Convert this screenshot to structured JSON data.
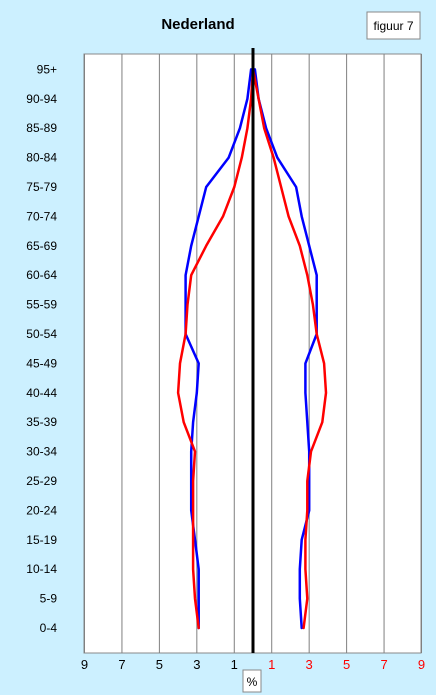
{
  "chart_data": {
    "type": "line",
    "title": "Nederland",
    "figure_label": "figuur 7",
    "xlabel": "%",
    "ylabel": "",
    "categories": [
      "0-4",
      "5-9",
      "10-14",
      "15-19",
      "20-24",
      "25-29",
      "30-34",
      "35-39",
      "40-44",
      "45-49",
      "50-54",
      "55-59",
      "60-64",
      "65-69",
      "70-74",
      "75-79",
      "80-84",
      "85-89",
      "90-94",
      "95+"
    ],
    "x_ticks_left": [
      "9",
      "7",
      "5",
      "3",
      "1"
    ],
    "x_ticks_right": [
      "1",
      "3",
      "5",
      "7",
      "9"
    ],
    "xlim": [
      -9,
      9
    ],
    "grid": true,
    "series": [
      {
        "color": "#0000ff",
        "left": [
          -2.9,
          -2.9,
          -2.9,
          -3.1,
          -3.3,
          -3.3,
          -3.3,
          -3.2,
          -3.0,
          -2.9,
          -3.6,
          -3.6,
          -3.6,
          -3.3,
          -2.9,
          -2.5,
          -1.3,
          -0.7,
          -0.3,
          -0.1
        ],
        "right": [
          2.6,
          2.5,
          2.5,
          2.6,
          3.0,
          3.0,
          3.0,
          2.9,
          2.8,
          2.8,
          3.4,
          3.4,
          3.4,
          3.0,
          2.6,
          2.3,
          1.3,
          0.7,
          0.3,
          0.1
        ]
      },
      {
        "color": "#ff0000",
        "left": [
          -2.9,
          -3.1,
          -3.2,
          -3.2,
          -3.2,
          -3.2,
          -3.1,
          -3.7,
          -4.0,
          -3.9,
          -3.6,
          -3.5,
          -3.3,
          -2.5,
          -1.6,
          -1.0,
          -0.6,
          -0.3,
          -0.1,
          0.0
        ],
        "right": [
          2.7,
          2.9,
          2.8,
          2.8,
          2.9,
          2.9,
          3.1,
          3.7,
          3.9,
          3.8,
          3.4,
          3.2,
          2.9,
          2.5,
          1.9,
          1.5,
          1.1,
          0.6,
          0.3,
          0.0
        ]
      }
    ],
    "colors": {
      "background": "#ccf0ff",
      "left_tick_color": "#000000",
      "right_tick_color": "#ff0000",
      "center_line": "#000000",
      "grid": "#808080"
    }
  }
}
